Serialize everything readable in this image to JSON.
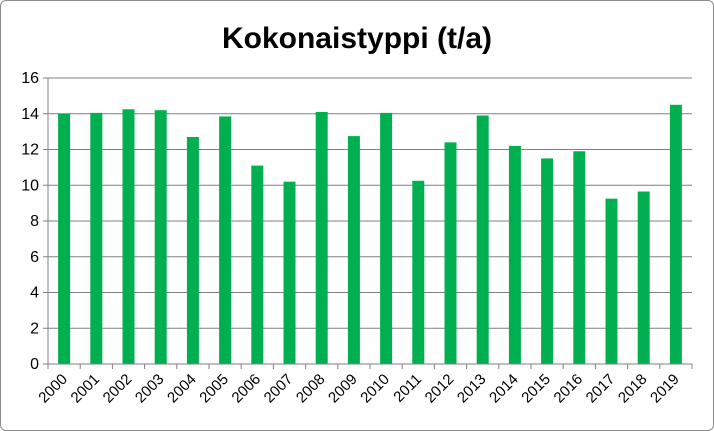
{
  "chart_data": {
    "type": "bar",
    "title": "Kokonaistyppi (t/a)",
    "xlabel": "",
    "ylabel": "",
    "categories": [
      "2000",
      "2001",
      "2002",
      "2003",
      "2004",
      "2005",
      "2006",
      "2007",
      "2008",
      "2009",
      "2010",
      "2011",
      "2012",
      "2013",
      "2014",
      "2015",
      "2016",
      "2017",
      "2018",
      "2019"
    ],
    "values": [
      14.0,
      14.05,
      14.25,
      14.2,
      12.7,
      13.85,
      11.1,
      10.2,
      14.1,
      12.75,
      14.05,
      10.25,
      12.4,
      13.9,
      12.2,
      11.5,
      11.9,
      9.25,
      9.65,
      14.5
    ],
    "yticks": [
      0,
      2,
      4,
      6,
      8,
      10,
      12,
      14,
      16
    ],
    "ylim": [
      0,
      16
    ],
    "grid": true,
    "legend": "none",
    "bar_color": "#00b050",
    "grid_color": "#808080"
  }
}
